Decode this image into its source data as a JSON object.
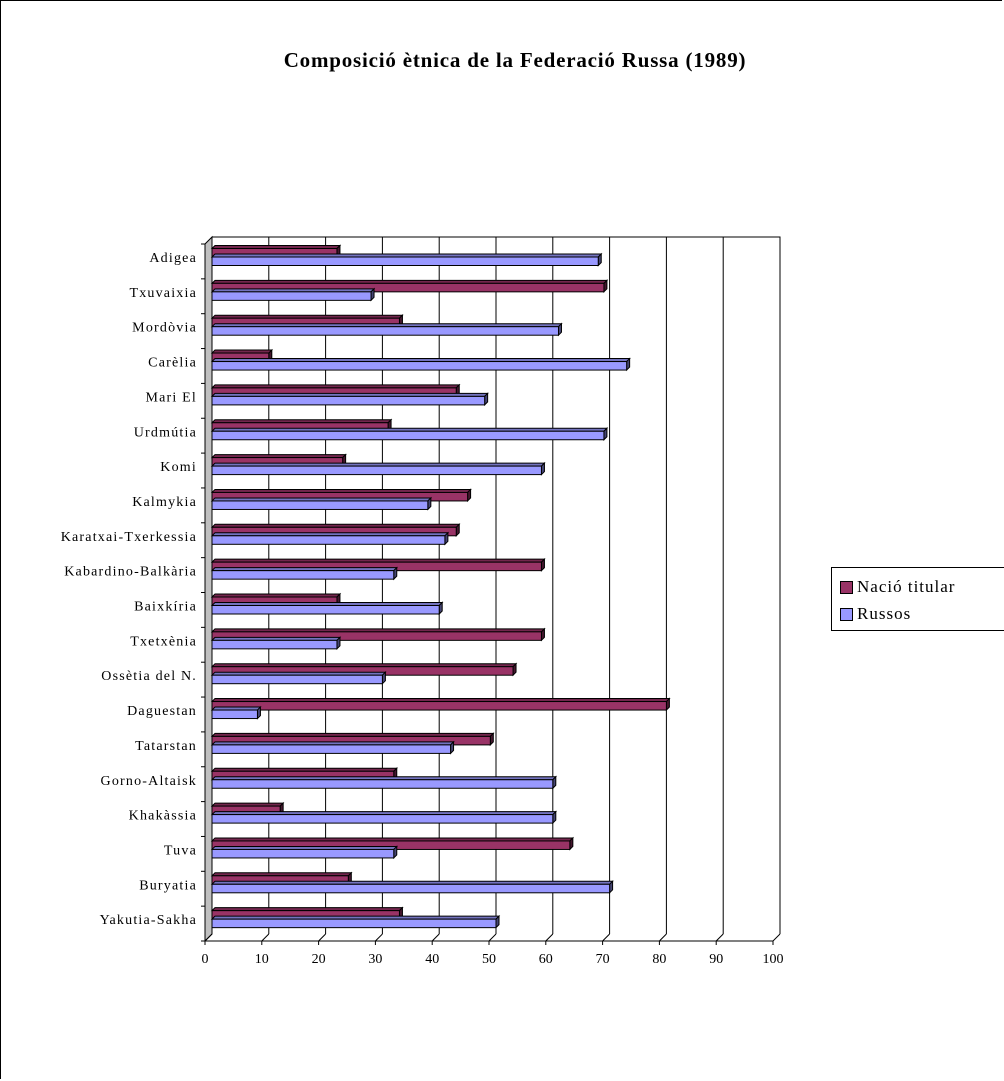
{
  "chart_data": {
    "type": "bar",
    "orientation": "horizontal",
    "style": "3d",
    "title": "Composició ètnica de la Federació Russa (1989)",
    "xlabel": "",
    "ylabel": "",
    "xlim": [
      0,
      100
    ],
    "ticks": [
      "0",
      "10",
      "20",
      "30",
      "40",
      "50",
      "60",
      "70",
      "80",
      "90",
      "100"
    ],
    "grid": true,
    "legend_position": "right",
    "categories": [
      "Adigea",
      "Txuvaixia",
      "Mordòvia",
      "Carèlia",
      "Mari El",
      "Urdmútia",
      "Komi",
      "Kalmykia",
      "Karatxai-Txerkessia",
      "Kabardino-Balkària",
      "Baixkíria",
      "Txetxènia",
      "Ossètia del N.",
      "Daguestan",
      "Tatarstan",
      "Gorno-Altaisk",
      "Khakàssia",
      "Tuva",
      "Buryatia",
      "Yakutia-Sakha"
    ],
    "series": [
      {
        "name": "Nació titular",
        "color": "#993366",
        "values": [
          22,
          69,
          33,
          10,
          43,
          31,
          23,
          45,
          43,
          58,
          22,
          58,
          53,
          80,
          49,
          32,
          12,
          63,
          24,
          33
        ]
      },
      {
        "name": "Russos",
        "color": "#9999ff",
        "values": [
          68,
          28,
          61,
          73,
          48,
          69,
          58,
          38,
          41,
          32,
          40,
          22,
          30,
          8,
          42,
          60,
          60,
          32,
          70,
          50
        ]
      }
    ]
  }
}
